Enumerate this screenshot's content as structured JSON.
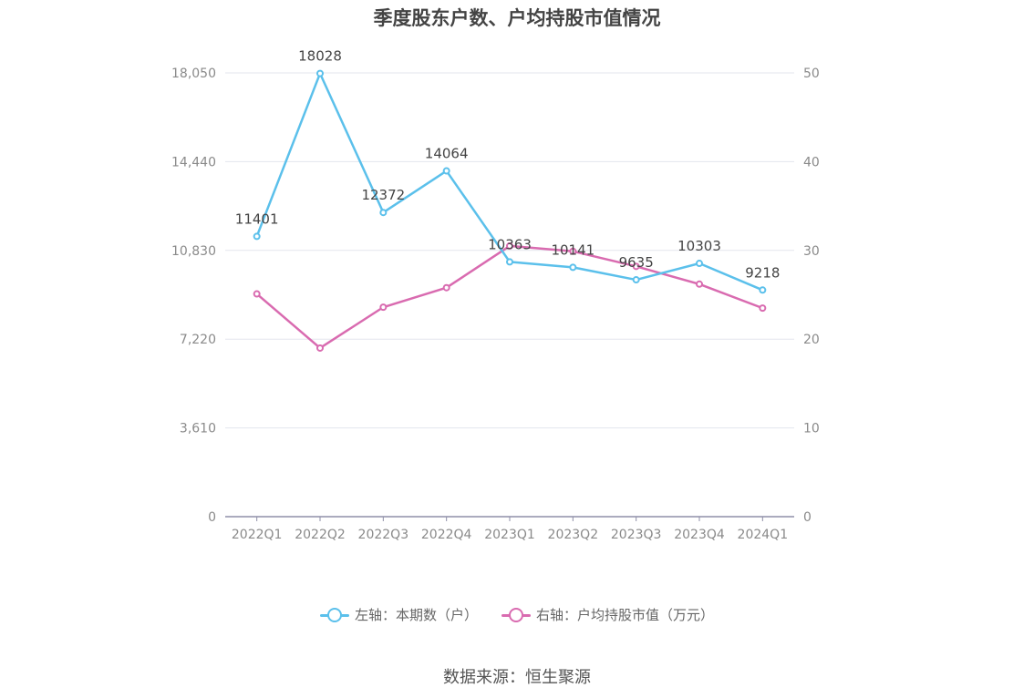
{
  "chart_data": {
    "type": "line",
    "title": "季度股东户数、户均持股市值情况",
    "categories": [
      "2022Q1",
      "2022Q2",
      "2022Q3",
      "2022Q4",
      "2023Q1",
      "2023Q2",
      "2023Q3",
      "2023Q4",
      "2024Q1"
    ],
    "series": [
      {
        "name": "左轴：本期数（户）",
        "axis": "left",
        "color": "#5bc0eb",
        "values": [
          11401,
          18028,
          12372,
          14064,
          10363,
          10141,
          9635,
          10303,
          9218
        ],
        "labels": [
          "11401",
          "18028",
          "12372",
          "14064",
          "10363",
          "10141",
          "9635",
          "10303",
          "9218"
        ]
      },
      {
        "name": "右轴：户均持股市值（万元）",
        "axis": "right",
        "color": "#d96bb0",
        "values": [
          25.1,
          19.0,
          23.6,
          25.8,
          30.5,
          29.9,
          28.2,
          26.2,
          23.5
        ]
      }
    ],
    "y_left": {
      "min": 0,
      "max": 18050,
      "ticks": [
        "0",
        "3,610",
        "7,220",
        "10,830",
        "14,440",
        "18,050"
      ]
    },
    "y_right": {
      "min": 0,
      "max": 50,
      "ticks": [
        "0",
        "10",
        "20",
        "30",
        "40",
        "50"
      ]
    },
    "grid": true,
    "legend_position": "bottom"
  },
  "source": "数据来源：恒生聚源"
}
